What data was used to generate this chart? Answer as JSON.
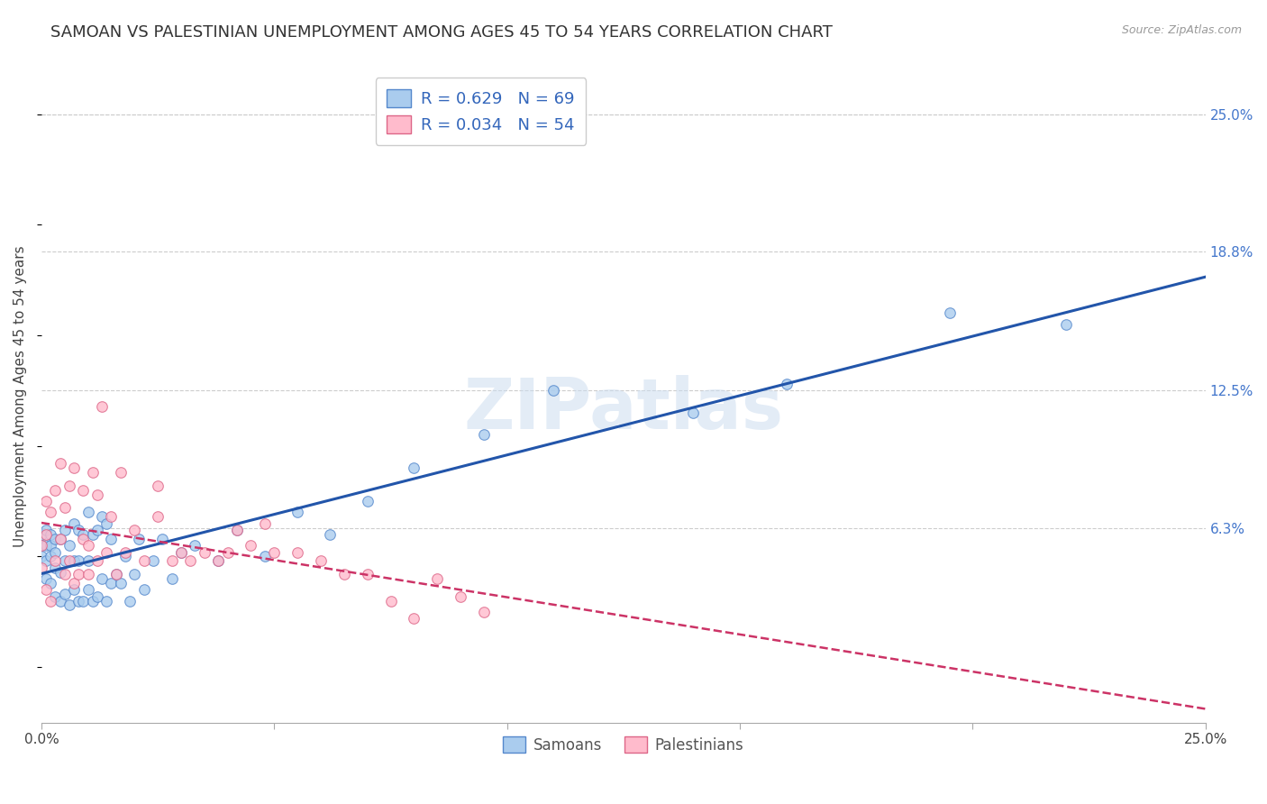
{
  "title": "SAMOAN VS PALESTINIAN UNEMPLOYMENT AMONG AGES 45 TO 54 YEARS CORRELATION CHART",
  "source": "Source: ZipAtlas.com",
  "ylabel": "Unemployment Among Ages 45 to 54 years",
  "xlim": [
    0.0,
    0.25
  ],
  "ylim": [
    -0.025,
    0.27
  ],
  "ytick_labels_right": [
    "25.0%",
    "18.8%",
    "12.5%",
    "6.3%"
  ],
  "ytick_values_right": [
    0.25,
    0.188,
    0.125,
    0.063
  ],
  "samoan_color": "#aaccee",
  "samoan_edge_color": "#5588cc",
  "palestinian_color": "#ffbbcc",
  "palestinian_edge_color": "#dd6688",
  "trend_samoan_color": "#2255aa",
  "trend_palestinian_color": "#cc3366",
  "R_samoan": 0.629,
  "N_samoan": 69,
  "R_palestinian": 0.034,
  "N_palestinian": 54,
  "watermark": "ZIPatlas",
  "samoan_x": [
    0.0,
    0.0,
    0.0,
    0.001,
    0.001,
    0.001,
    0.001,
    0.002,
    0.002,
    0.002,
    0.002,
    0.003,
    0.003,
    0.003,
    0.003,
    0.004,
    0.004,
    0.004,
    0.005,
    0.005,
    0.005,
    0.006,
    0.006,
    0.007,
    0.007,
    0.007,
    0.008,
    0.008,
    0.008,
    0.009,
    0.009,
    0.01,
    0.01,
    0.01,
    0.011,
    0.011,
    0.012,
    0.012,
    0.013,
    0.013,
    0.014,
    0.014,
    0.015,
    0.015,
    0.016,
    0.017,
    0.018,
    0.019,
    0.02,
    0.021,
    0.022,
    0.024,
    0.026,
    0.028,
    0.03,
    0.033,
    0.038,
    0.042,
    0.048,
    0.055,
    0.062,
    0.07,
    0.08,
    0.095,
    0.11,
    0.14,
    0.16,
    0.195,
    0.22
  ],
  "samoan_y": [
    0.05,
    0.055,
    0.06,
    0.04,
    0.048,
    0.055,
    0.062,
    0.038,
    0.05,
    0.055,
    0.06,
    0.032,
    0.045,
    0.052,
    0.058,
    0.03,
    0.043,
    0.058,
    0.033,
    0.048,
    0.062,
    0.028,
    0.055,
    0.035,
    0.048,
    0.065,
    0.03,
    0.048,
    0.062,
    0.03,
    0.06,
    0.035,
    0.048,
    0.07,
    0.03,
    0.06,
    0.032,
    0.062,
    0.04,
    0.068,
    0.03,
    0.065,
    0.038,
    0.058,
    0.042,
    0.038,
    0.05,
    0.03,
    0.042,
    0.058,
    0.035,
    0.048,
    0.058,
    0.04,
    0.052,
    0.055,
    0.048,
    0.062,
    0.05,
    0.07,
    0.06,
    0.075,
    0.09,
    0.105,
    0.125,
    0.115,
    0.128,
    0.16,
    0.155
  ],
  "palestinian_x": [
    0.0,
    0.0,
    0.001,
    0.001,
    0.001,
    0.002,
    0.002,
    0.003,
    0.003,
    0.004,
    0.004,
    0.005,
    0.005,
    0.006,
    0.006,
    0.007,
    0.007,
    0.008,
    0.009,
    0.009,
    0.01,
    0.01,
    0.011,
    0.012,
    0.012,
    0.013,
    0.014,
    0.015,
    0.016,
    0.017,
    0.018,
    0.02,
    0.022,
    0.025,
    0.025,
    0.028,
    0.03,
    0.032,
    0.035,
    0.038,
    0.04,
    0.042,
    0.045,
    0.048,
    0.05,
    0.055,
    0.06,
    0.065,
    0.07,
    0.075,
    0.08,
    0.085,
    0.09,
    0.095
  ],
  "palestinian_y": [
    0.045,
    0.055,
    0.035,
    0.06,
    0.075,
    0.03,
    0.07,
    0.048,
    0.08,
    0.058,
    0.092,
    0.042,
    0.072,
    0.048,
    0.082,
    0.038,
    0.09,
    0.042,
    0.058,
    0.08,
    0.042,
    0.055,
    0.088,
    0.048,
    0.078,
    0.118,
    0.052,
    0.068,
    0.042,
    0.088,
    0.052,
    0.062,
    0.048,
    0.068,
    0.082,
    0.048,
    0.052,
    0.048,
    0.052,
    0.048,
    0.052,
    0.062,
    0.055,
    0.065,
    0.052,
    0.052,
    0.048,
    0.042,
    0.042,
    0.03,
    0.022,
    0.04,
    0.032,
    0.025
  ],
  "background_color": "#ffffff",
  "grid_color": "#cccccc",
  "title_fontsize": 13,
  "axis_label_fontsize": 11,
  "tick_fontsize": 11,
  "marker_size": 70
}
